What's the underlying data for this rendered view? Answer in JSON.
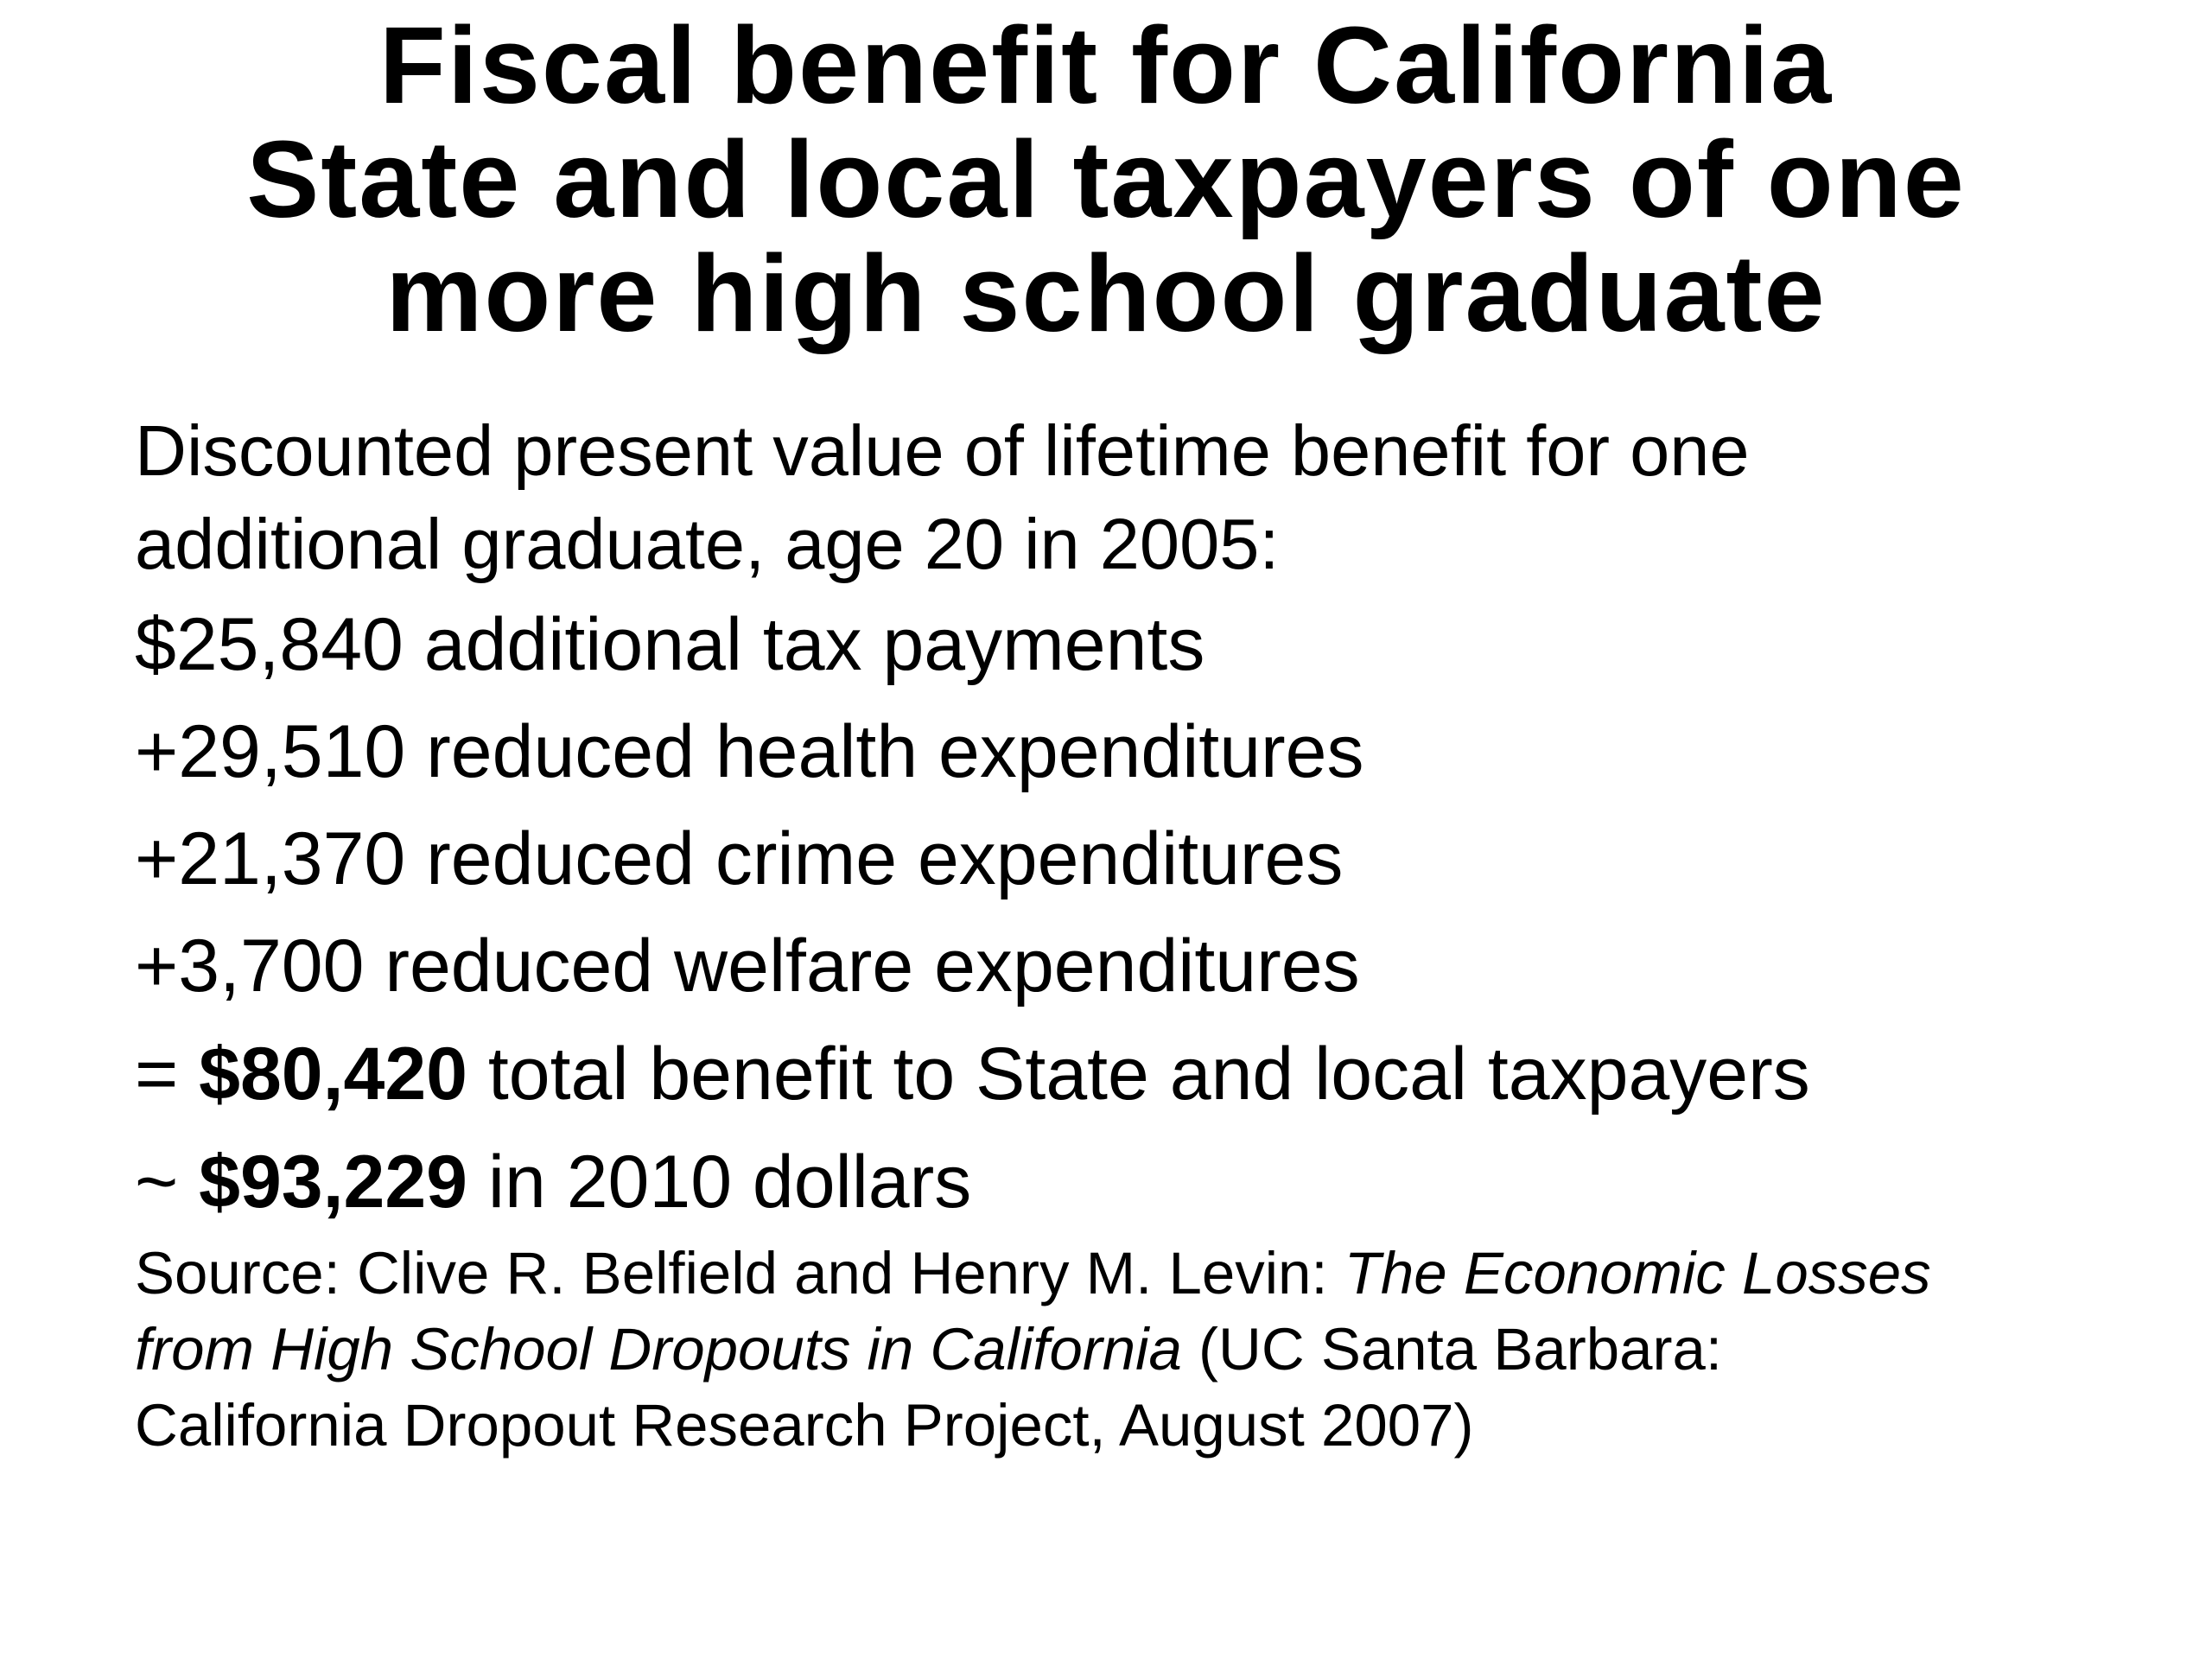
{
  "title": {
    "line1": "Fiscal benefit for California",
    "line2": "State and local taxpayers of one",
    "line3": "more high school graduate"
  },
  "intro": {
    "line1": "Discounted present value of  lifetime benefit for one",
    "line2": "additional graduate, age 20 in 2005:"
  },
  "items": [
    {
      "amount": "$25,840",
      "text": " additional tax payments"
    },
    {
      "amount": "+29,510",
      "text": " reduced health expenditures"
    },
    {
      "amount": "+21,370",
      "text": " reduced crime expenditures"
    },
    {
      "amount": "+3,700",
      "text": " reduced welfare expenditures"
    }
  ],
  "total": {
    "prefix": "= ",
    "amount": "$80,420",
    "text": " total benefit to State and local taxpayers"
  },
  "adjusted": {
    "prefix": "~ ",
    "amount": "$93,229",
    "text": " in 2010 dollars"
  },
  "source": {
    "prefix": "Source: Clive R. Belfield and Henry M. Levin:  ",
    "title_part1": "The Economic Losses",
    "title_part2": "from High School Dropouts in California",
    "suffix_line2": " (UC Santa Barbara:",
    "line3": "California Dropout Research Project, August 2007)"
  }
}
